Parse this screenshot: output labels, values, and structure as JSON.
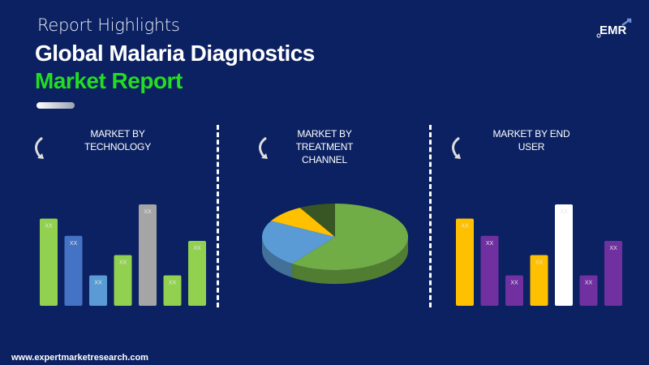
{
  "header": {
    "kicker": "Report Highlights",
    "title_line1": "Global Malaria Diagnostics",
    "title_line2": "Market Report"
  },
  "logo": {
    "text": "EMR"
  },
  "footer": {
    "url": "www.expertmarketresearch.com"
  },
  "colors": {
    "background": "#0b2161",
    "title_accent": "#22dd22"
  },
  "chart_data": [
    {
      "type": "bar",
      "title": "MARKET BY TECHNOLOGY",
      "note": "values relative (no axis printed)",
      "values": [
        86,
        69,
        30,
        50,
        100,
        30,
        64
      ],
      "data_labels": [
        "XX",
        "XX",
        "XX",
        "XX",
        "XX",
        "XX",
        "XX"
      ],
      "colors": [
        "#92d050",
        "#4472c4",
        "#5b9bd5",
        "#92d050",
        "#a5a5a5",
        "#92d050",
        "#92d050"
      ]
    },
    {
      "type": "pie",
      "title": "MARKET BY TREATMENT CHANNEL",
      "style": "3d",
      "values": [
        60,
        23,
        9,
        8
      ],
      "colors": [
        "#70ad47",
        "#5b9bd5",
        "#ffc000",
        "#375623"
      ]
    },
    {
      "type": "bar",
      "title": "MARKET BY END USER",
      "values": [
        86,
        69,
        30,
        50,
        100,
        30,
        64
      ],
      "data_labels": [
        "XX",
        "XX",
        "XX",
        "XX",
        "XX",
        "XX",
        "XX"
      ],
      "colors": [
        "#ffc000",
        "#7030a0",
        "#7030a0",
        "#ffc000",
        "#ffffff",
        "#7030a0",
        "#7030a0"
      ]
    }
  ]
}
